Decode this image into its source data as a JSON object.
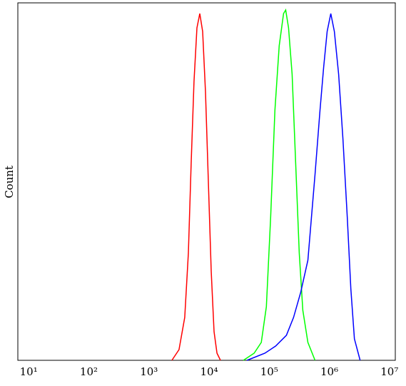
{
  "chart_data": {
    "type": "line",
    "y_label": "Count",
    "log_x": true,
    "xlim": [
      6.6,
      12500000
    ],
    "ylim": [
      0,
      100
    ],
    "xticks": [
      {
        "value": 10,
        "label": "10¹"
      },
      {
        "value": 100,
        "label": "10²"
      },
      {
        "value": 1000,
        "label": "10³"
      },
      {
        "value": 10000,
        "label": "10⁴"
      },
      {
        "value": 100000,
        "label": "10⁵"
      },
      {
        "value": 1000000,
        "label": "10⁶"
      },
      {
        "value": 10000000,
        "label": "10⁷"
      }
    ],
    "series": [
      {
        "color": "#ff0000",
        "x": [
          2405,
          3162,
          3936,
          4519,
          5036,
          5623,
          6280,
          7003,
          7813,
          8718,
          9727,
          10857,
          12106,
          13524,
          15488
        ],
        "values": [
          0,
          3,
          12,
          30,
          55,
          78,
          93,
          97,
          92,
          75,
          50,
          25,
          8,
          2,
          0
        ]
      },
      {
        "color": "#00ff00",
        "x": [
          37240,
          56230,
          73940,
          89570,
          105600,
          124500,
          146800,
          173000,
          188000,
          209600,
          240400,
          275500,
          316200,
          362700,
          439400,
          577900
        ],
        "values": [
          0,
          2,
          5,
          15,
          40,
          70,
          88,
          97,
          98,
          93,
          80,
          55,
          30,
          14,
          5,
          0
        ]
      },
      {
        "color": "#0000ff",
        "x": [
          42760,
          84900,
          128000,
          193100,
          254100,
          334200,
          439400,
          503900,
          577900,
          699800,
          803500,
          920700,
          1056000,
          1211000,
          1428000,
          1683000,
          1986000,
          2276000,
          2610000,
          3250000
        ],
        "values": [
          0,
          2,
          4,
          7,
          12,
          19,
          28,
          40,
          52,
          70,
          82,
          92,
          97,
          92,
          80,
          62,
          40,
          20,
          6,
          0
        ]
      }
    ]
  }
}
